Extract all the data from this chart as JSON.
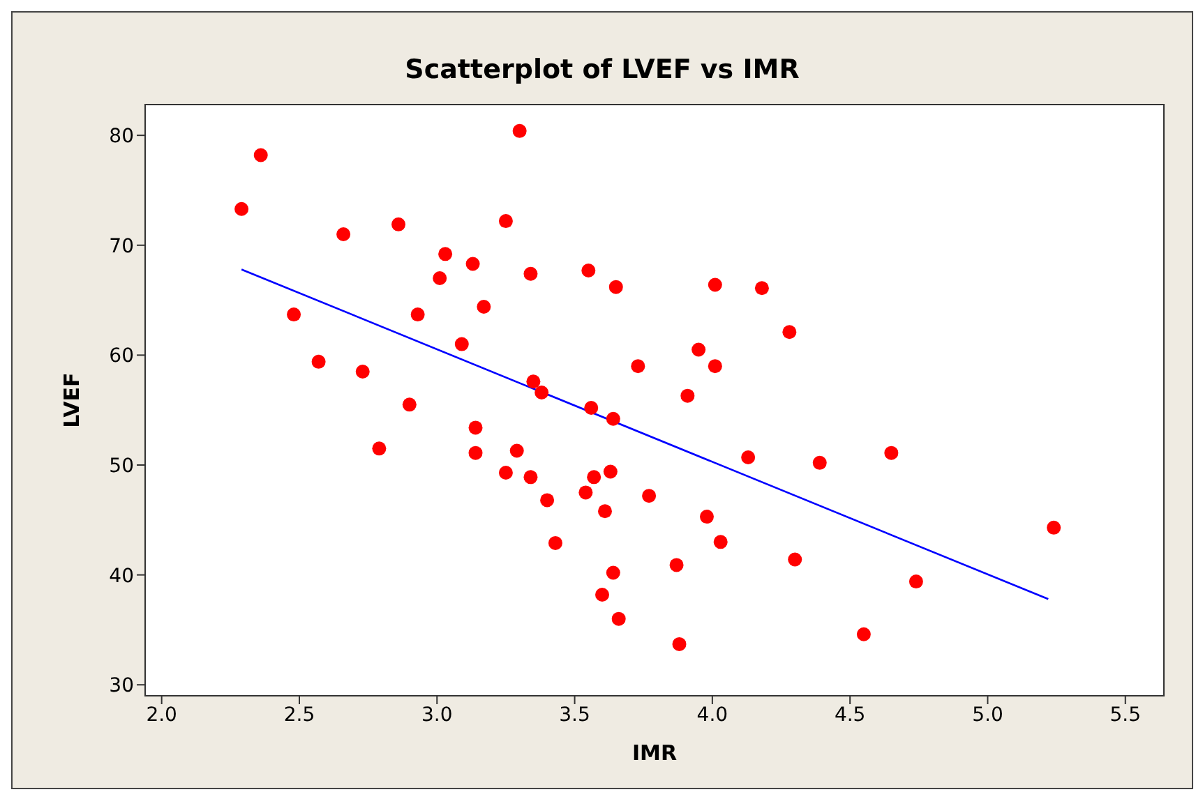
{
  "chart_data": {
    "type": "scatter",
    "title": "Scatterplot of LVEF vs IMR",
    "xlabel": "IMR",
    "ylabel": "LVEF",
    "xlim": [
      1.94,
      5.64
    ],
    "xticks": [
      {
        "value": 2,
        "label": "2.0"
      },
      2.5,
      {
        "value": 3,
        "label": "3.0"
      },
      3.5,
      {
        "value": 4,
        "label": "4.0"
      },
      4.5,
      {
        "value": 5,
        "label": "5.0"
      },
      5.5
    ],
    "ylim": [
      29,
      82.8
    ],
    "yticks": [
      30,
      40,
      50,
      60,
      70,
      80
    ],
    "marker": "circle",
    "series": [
      {
        "color": "#ff0000",
        "x": [
          2.29,
          2.36,
          2.66,
          2.86,
          2.48,
          2.57,
          2.73,
          2.79,
          2.9,
          2.93,
          3.01,
          3.03,
          3.09,
          3.13,
          3.17,
          3.25,
          3.3,
          3.34,
          3.14,
          3.14,
          3.25,
          3.29,
          3.34,
          3.35,
          3.38,
          3.4,
          3.43,
          3.55,
          3.65,
          3.56,
          3.64,
          3.54,
          3.57,
          3.63,
          3.61,
          3.64,
          3.6,
          3.66,
          3.73,
          3.77,
          3.95,
          3.91,
          4.01,
          4.01,
          4.18,
          4.28,
          4.13,
          4.39,
          4.65,
          3.98,
          4.03,
          3.87,
          3.88,
          4.3,
          4.55,
          4.74,
          5.24
        ],
        "values": [
          73.3,
          78.2,
          71,
          71.9,
          63.7,
          59.4,
          58.5,
          51.5,
          55.5,
          63.7,
          67,
          69.2,
          61,
          68.3,
          64.4,
          72.2,
          80.4,
          67.4,
          53.4,
          51.1,
          49.3,
          51.3,
          48.9,
          57.6,
          56.6,
          46.8,
          42.9,
          67.7,
          66.2,
          55.2,
          54.2,
          47.5,
          48.9,
          49.4,
          45.8,
          40.2,
          38.2,
          36,
          59,
          47.2,
          60.5,
          56.3,
          66.4,
          59,
          66.1,
          62.1,
          50.7,
          50.2,
          51.1,
          45.3,
          43,
          40.9,
          33.7,
          41.4,
          34.6,
          39.4,
          44.3
        ]
      },
      {
        "type": "line",
        "color": "#0000ff",
        "marker": "none",
        "line_style": "solid",
        "x": [
          2.29,
          5.22
        ],
        "values": [
          67.8,
          37.8
        ]
      }
    ]
  }
}
